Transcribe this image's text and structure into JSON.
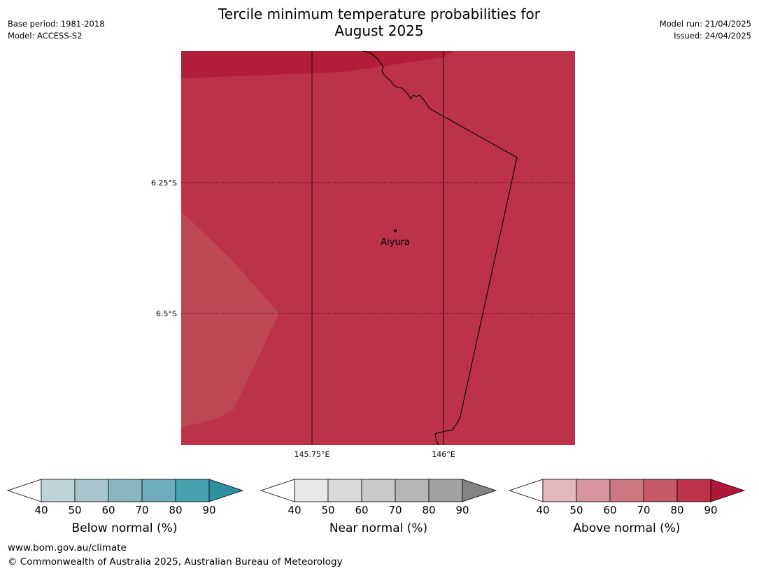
{
  "title_line1": "Tercile minimum temperature probabilities for",
  "title_line2": "August 2025",
  "meta_left": [
    "Base period: 1981-2018",
    "Model: ACCESS-S2"
  ],
  "meta_right": [
    "Model run: 21/04/2025",
    "Issued: 24/04/2025"
  ],
  "map": {
    "lat_labels": [
      "6.25°S",
      "6.5°S"
    ],
    "lon_labels": [
      "145.75°E",
      "146°E"
    ],
    "place": "Aiyura",
    "colors": {
      "dark": "#b21d3a",
      "main": "#bc3349",
      "light": "#bd4854",
      "border": "#000000"
    }
  },
  "colorbars": [
    {
      "label": "Below normal (%)",
      "ticks": [
        "40",
        "50",
        "60",
        "70",
        "80",
        "90"
      ],
      "colors": [
        "#bfd4da",
        "#a8c5cb",
        "#8ab6c2",
        "#6eacbb",
        "#48a0b0",
        "#2f8fa0"
      ]
    },
    {
      "label": "Near normal (%)",
      "ticks": [
        "40",
        "50",
        "60",
        "70",
        "80",
        "90"
      ],
      "colors": [
        "#e8e8e8",
        "#d9d9d9",
        "#c9c9c9",
        "#b6b6b6",
        "#a1a1a1",
        "#838383"
      ]
    },
    {
      "label": "Above normal (%)",
      "ticks": [
        "40",
        "50",
        "60",
        "70",
        "80",
        "90"
      ],
      "colors": [
        "#e2b7bd",
        "#d6949c",
        "#cd7880",
        "#c65a67",
        "#bd3349",
        "#b0173a"
      ]
    }
  ],
  "footer": [
    "www.bom.gov.au/climate",
    "© Commonwealth of Australia 2025, Australian Bureau of Meteorology"
  ]
}
